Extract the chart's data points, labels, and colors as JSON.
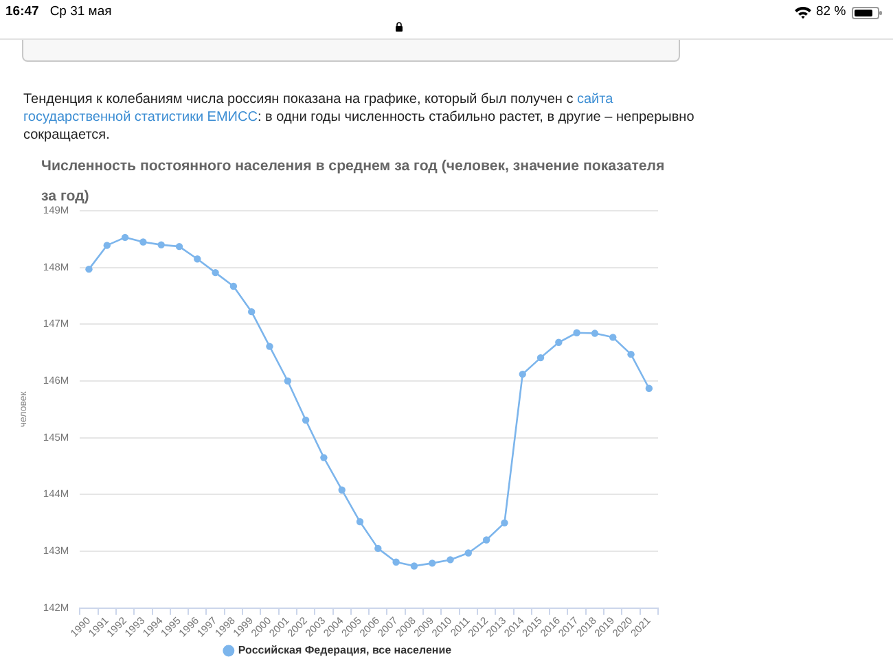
{
  "chart_data": {
    "type": "line",
    "title": "Численность постоянного населения в среднем за год (человек, значение показателя за год)",
    "ylabel": "человек",
    "annotations": [
      "16:47",
      "Ср 31 мая",
      "82 %",
      "Тенденция к колебаниям числа россиян показана на графике, который был получен с ",
      "сайта",
      "государственной статистики ЕМИСС",
      ": в одни годы численность стабильно растет, в другие – непрерывно",
      "сокращается."
    ],
    "categories": [
      "1990",
      "1991",
      "1992",
      "1993",
      "1994",
      "1995",
      "1996",
      "1997",
      "1998",
      "1999",
      "2000",
      "2001",
      "2002",
      "2003",
      "2004",
      "2005",
      "2006",
      "2007",
      "2008",
      "2009",
      "2010",
      "2011",
      "2012",
      "2013",
      "2014",
      "2015",
      "2016",
      "2017",
      "2018",
      "2019",
      "2020",
      "2021"
    ],
    "series": [
      {
        "name": "Российская Федерация, все население",
        "color": "#7cb5ec",
        "values": [
          147970000,
          148390000,
          148530000,
          148450000,
          148400000,
          148370000,
          148150000,
          147910000,
          147670000,
          147220000,
          146610000,
          146000000,
          145310000,
          144650000,
          144080000,
          143520000,
          143050000,
          142810000,
          142740000,
          142790000,
          142850000,
          142970000,
          143200000,
          143500000,
          146120000,
          146410000,
          146680000,
          146850000,
          146840000,
          146770000,
          146470000,
          145870000
        ]
      }
    ],
    "ylim": [
      142000000,
      149000000
    ],
    "yticks": [
      {
        "value": 142000000,
        "label": "142M"
      },
      {
        "value": 143000000,
        "label": "143M"
      },
      {
        "value": 144000000,
        "label": "144M"
      },
      {
        "value": 145000000,
        "label": "145M"
      },
      {
        "value": 146000000,
        "label": "146M"
      },
      {
        "value": 147000000,
        "label": "147M"
      },
      {
        "value": 148000000,
        "label": "148M"
      },
      {
        "value": 149000000,
        "label": "149M"
      }
    ],
    "grid": "y",
    "legend": "bottom",
    "marker": "circle",
    "line_style": "solid"
  }
}
